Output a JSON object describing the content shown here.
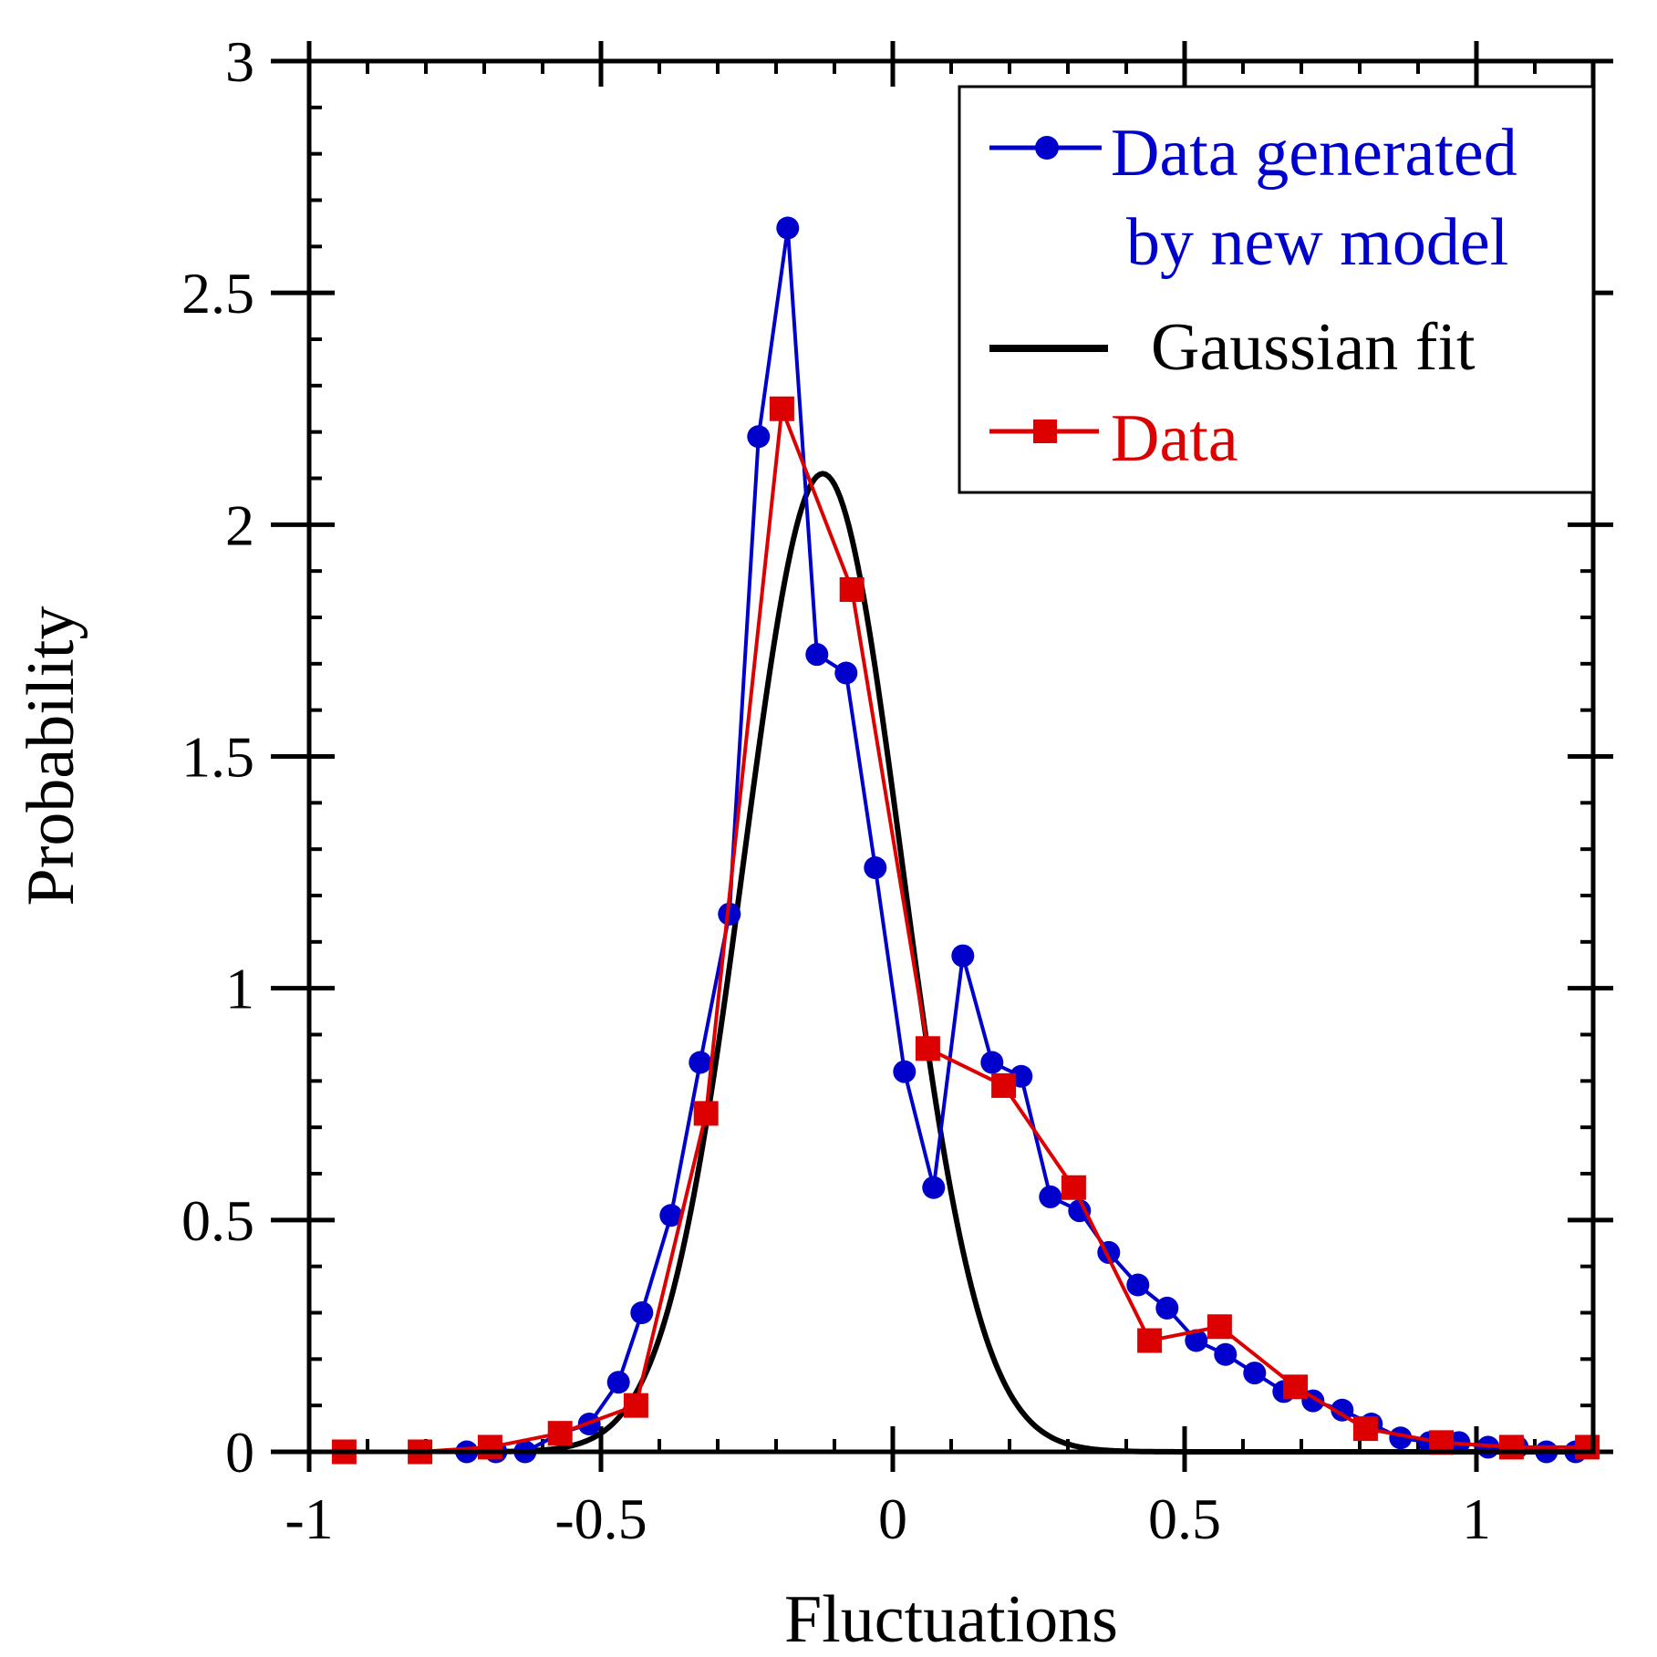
{
  "chart_data": {
    "type": "line",
    "title": "",
    "xlabel": "Fluctuations",
    "ylabel": "Probability",
    "xlim": [
      -1,
      1.2
    ],
    "ylim": [
      0,
      3
    ],
    "x_ticks": [
      -1,
      -0.5,
      0,
      0.5,
      1
    ],
    "x_tick_labels": [
      "-1",
      "-0.5",
      "0",
      "0.5",
      "1"
    ],
    "y_ticks": [
      0,
      0.5,
      1,
      1.5,
      2,
      2.5,
      3
    ],
    "y_tick_labels": [
      "0",
      "0.5",
      "1",
      "1.5",
      "2",
      "2.5",
      "3"
    ],
    "legend_position": "top-right",
    "legend": {
      "model_line1": "Data generated",
      "model_line2": "by new model",
      "gauss": "Gaussian fit",
      "data": "Data"
    },
    "series": [
      {
        "name": "Data generated by new model",
        "color": "#0000cc",
        "marker": "circle",
        "x": [
          -0.73,
          -0.68,
          -0.63,
          -0.57,
          -0.52,
          -0.47,
          -0.43,
          -0.38,
          -0.33,
          -0.28,
          -0.23,
          -0.18,
          -0.13,
          -0.08,
          -0.03,
          0.02,
          0.07,
          0.12,
          0.17,
          0.22,
          0.27,
          0.32,
          0.37,
          0.42,
          0.47,
          0.52,
          0.57,
          0.62,
          0.67,
          0.72,
          0.77,
          0.82,
          0.87,
          0.92,
          0.97,
          1.02,
          1.07,
          1.12,
          1.17
        ],
        "y": [
          0.0,
          0.0,
          0.0,
          0.04,
          0.06,
          0.15,
          0.3,
          0.51,
          0.84,
          1.16,
          2.19,
          2.64,
          1.72,
          1.68,
          1.26,
          0.82,
          0.57,
          1.07,
          0.84,
          0.81,
          0.55,
          0.52,
          0.43,
          0.36,
          0.31,
          0.24,
          0.21,
          0.17,
          0.13,
          0.11,
          0.09,
          0.06,
          0.03,
          0.02,
          0.02,
          0.01,
          0.01,
          0.0,
          0.0
        ]
      },
      {
        "name": "Gaussian fit",
        "color": "#000000",
        "marker": "none",
        "gaussian": {
          "amplitude": 2.11,
          "mean": -0.12,
          "sigma": 0.135
        },
        "x_range": [
          -0.75,
          1.2
        ]
      },
      {
        "name": "Data",
        "color": "#dd0000",
        "marker": "square",
        "x": [
          -0.94,
          -0.81,
          -0.69,
          -0.57,
          -0.44,
          -0.32,
          -0.19,
          -0.07,
          0.06,
          0.19,
          0.31,
          0.44,
          0.56,
          0.69,
          0.81,
          0.94,
          1.06,
          1.19
        ],
        "y": [
          0.0,
          0.0,
          0.01,
          0.04,
          0.1,
          0.73,
          2.25,
          1.86,
          0.87,
          0.79,
          0.57,
          0.24,
          0.27,
          0.14,
          0.05,
          0.02,
          0.01,
          0.01
        ]
      }
    ]
  }
}
